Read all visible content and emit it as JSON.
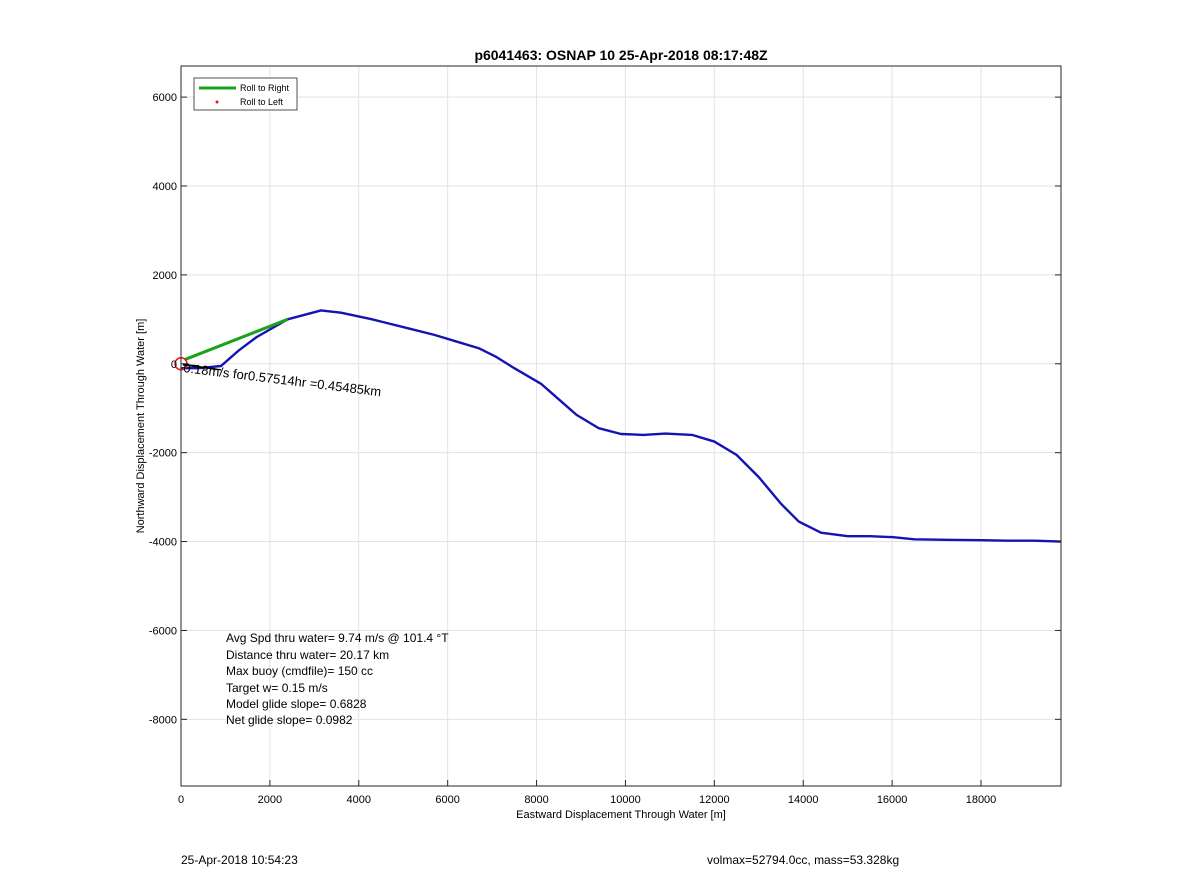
{
  "chart_data": {
    "type": "line",
    "title": "p6041463: OSNAP 10 25-Apr-2018 08:17:48Z",
    "xlabel": "Eastward Displacement Through Water [m]",
    "ylabel": "Northward Displacement Through Water [m]",
    "xlim": [
      0,
      19800
    ],
    "ylim": [
      -9500,
      6700
    ],
    "xticks": [
      0,
      2000,
      4000,
      6000,
      8000,
      10000,
      12000,
      14000,
      16000,
      18000
    ],
    "yticks": [
      6000,
      4000,
      2000,
      0,
      -2000,
      -4000,
      -6000,
      -8000
    ],
    "grid": true,
    "legend": {
      "placement": "top-left",
      "entries": [
        "Roll to Right",
        "Roll to Left"
      ]
    },
    "series": [
      {
        "name": "Roll to Right",
        "color": "#1aa31a",
        "x": [
          100,
          2400
        ],
        "y": [
          100,
          1000
        ]
      },
      {
        "name": "Roll to Left",
        "color": "#e8141e",
        "x": [
          0
        ],
        "y": [
          0
        ]
      },
      {
        "color": "#1414b4",
        "x": [
          0,
          400,
          900,
          1300,
          1700,
          2400,
          3150,
          3600,
          4300,
          5100,
          5700,
          6200,
          6700,
          7100,
          7500,
          8100,
          8500,
          8900,
          9400,
          9900,
          10400,
          10900,
          11500,
          12000,
          12500,
          13000,
          13500,
          13900,
          14400,
          15000,
          15500,
          16000,
          16500,
          17200,
          18000,
          18600,
          19200,
          19800
        ],
        "y": [
          -100,
          -100,
          -50,
          300,
          600,
          1000,
          1200,
          1150,
          1000,
          800,
          650,
          500,
          350,
          150,
          -100,
          -450,
          -800,
          -1150,
          -1450,
          -1580,
          -1600,
          -1570,
          -1600,
          -1750,
          -2050,
          -2550,
          -3150,
          -3550,
          -3800,
          -3880,
          -3880,
          -3900,
          -3950,
          -3960,
          -3970,
          -3980,
          -3980,
          -4000
        ]
      }
    ],
    "annotation": "0.18m/s for0.57514hr =0.45485km",
    "stats": [
      "Avg Spd thru water=  9.74 m/s @ 101.4 °T",
      "Distance thru water= 20.17 km",
      "Max buoy (cmdfile)= 150 cc",
      "Target w= 0.15 m/s",
      "Model glide slope= 0.6828",
      "Net glide slope= 0.0982"
    ]
  },
  "footer": {
    "left": "25-Apr-2018 10:54:23",
    "right": "volmax=52794.0cc, mass=53.328kg"
  }
}
